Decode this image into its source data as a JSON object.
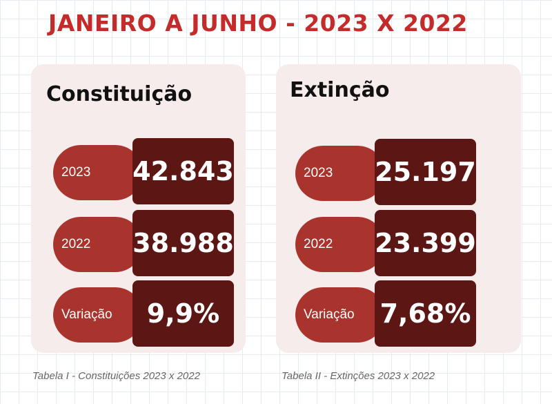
{
  "title": "JANEIRO A JUNHO - 2023 X 2022",
  "tables": [
    {
      "heading": "Constituição",
      "rows": [
        {
          "label": "2023",
          "value": "42.843"
        },
        {
          "label": "2022",
          "value": "38.988"
        },
        {
          "label": "Variação",
          "value": "9,9%"
        }
      ],
      "caption": "Tabela I - Constituições 2023 x 2022"
    },
    {
      "heading": "Extinção",
      "rows": [
        {
          "label": "2023",
          "value": "25.197"
        },
        {
          "label": "2022",
          "value": "23.399"
        },
        {
          "label": "Variação",
          "value": "7,68%"
        }
      ],
      "caption": "Tabela II - Extinções 2023 x 2022"
    }
  ],
  "colors": {
    "title": "#c42b2b",
    "card_background": "#f6eceb",
    "label_pill": "#a8342d",
    "value_box": "#5c1714"
  }
}
